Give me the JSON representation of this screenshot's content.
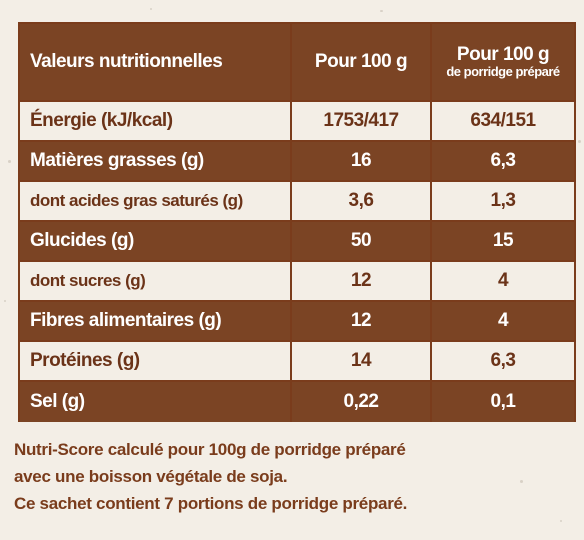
{
  "table": {
    "header": {
      "col1": "Valeurs nutritionnelles",
      "col2": "Pour 100 g",
      "col3_line1": "Pour 100 g",
      "col3_line2": "de porridge préparé"
    },
    "rows": [
      {
        "label": "Énergie (kJ/kcal)",
        "per100g": "1753/417",
        "per100g_prepared": "634/151"
      },
      {
        "label": "Matières grasses (g)",
        "per100g": "16",
        "per100g_prepared": "6,3"
      },
      {
        "label": "dont acides gras saturés (g)",
        "per100g": "3,6",
        "per100g_prepared": "1,3"
      },
      {
        "label": "Glucides (g)",
        "per100g": "50",
        "per100g_prepared": "15"
      },
      {
        "label": "dont sucres (g)",
        "per100g": "12",
        "per100g_prepared": "4"
      },
      {
        "label": "Fibres alimentaires (g)",
        "per100g": "12",
        "per100g_prepared": "4"
      },
      {
        "label": "Protéines (g)",
        "per100g": "14",
        "per100g_prepared": "6,3"
      },
      {
        "label": "Sel (g)",
        "per100g": "0,22",
        "per100g_prepared": "0,1"
      }
    ]
  },
  "notes": {
    "line1": "Nutri-Score calculé pour 100g de porridge préparé",
    "line2": "avec une boisson végétale de soja.",
    "line3": "Ce sachet contient 7 portions de porridge préparé."
  },
  "colors": {
    "brown_dark": "#7b4424",
    "brown_text": "#6b3318",
    "background": "#f3eee6"
  }
}
